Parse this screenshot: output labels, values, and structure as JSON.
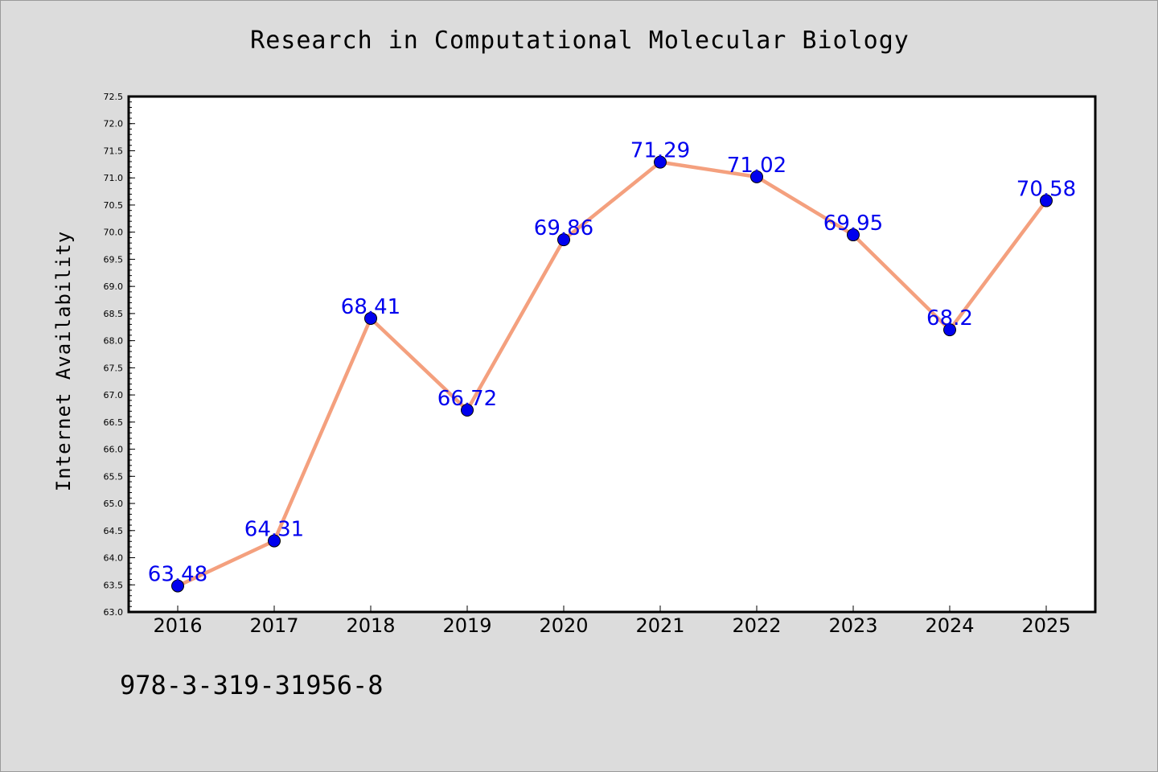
{
  "chart_data": {
    "type": "line",
    "title": "Research in Computational Molecular Biology",
    "xlabel": "",
    "ylabel": "Internet Availability",
    "categories": [
      "2016",
      "2017",
      "2018",
      "2019",
      "2020",
      "2021",
      "2022",
      "2023",
      "2024",
      "2025"
    ],
    "series": [
      {
        "values": [
          63.48,
          64.31,
          68.41,
          66.72,
          69.86,
          71.29,
          71.02,
          69.95,
          68.2,
          70.58
        ],
        "data_labels": [
          "63.48",
          "64.31",
          "68.41",
          "66.72",
          "69.86",
          "71.29",
          "71.02",
          "69.95",
          "68.2",
          "70.58"
        ],
        "line_color": "#f4a07e",
        "marker_color": "#0000ee",
        "label_color": "#0000ee"
      }
    ],
    "ylim": [
      63.0,
      72.5
    ],
    "yticks": [
      "63.0",
      "63.5",
      "64.0",
      "64.5",
      "65.0",
      "65.5",
      "66.0",
      "66.5",
      "67.0",
      "67.5",
      "68.0",
      "68.5",
      "69.0",
      "69.5",
      "70.0",
      "70.5",
      "71.0",
      "71.5",
      "72.0",
      "72.5"
    ],
    "grid": false,
    "legend": "none",
    "background_color": "#dcdcdc",
    "plot_background_color": "#ffffff"
  },
  "footnote": "978-3-319-31956-8"
}
